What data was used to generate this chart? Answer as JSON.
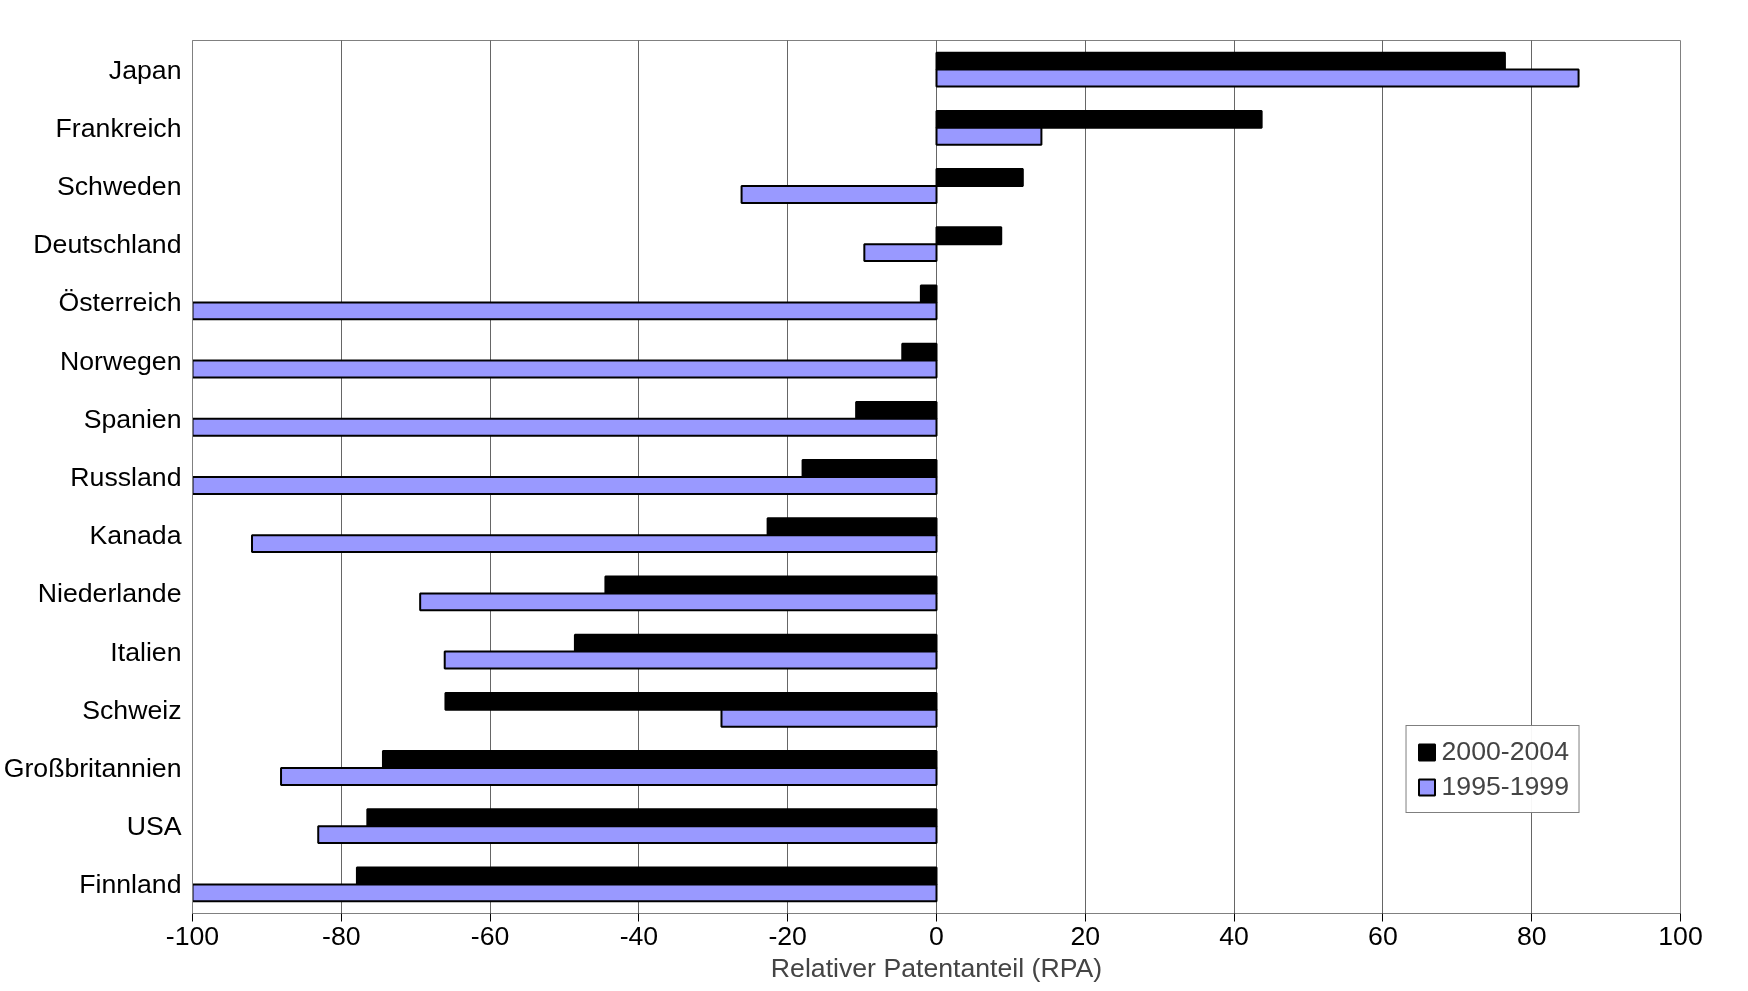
{
  "chart_data": {
    "type": "bar",
    "orientation": "horizontal",
    "xlabel": "Relativer Patentanteil (RPA)",
    "categories": [
      "Japan",
      "Frankreich",
      "Schweden",
      "Deutschland",
      "Österreich",
      "Norwegen",
      "Spanien",
      "Russland",
      "Kanada",
      "Niederlande",
      "Italien",
      "Schweiz",
      "Großbritannien",
      "USA",
      "Finnland"
    ],
    "series": [
      {
        "name": "2000-2004",
        "color": "#000000",
        "values": [
          76.4,
          43.7,
          11.6,
          8.7,
          -2.1,
          -4.6,
          -10.8,
          -18,
          -22.7,
          -44.5,
          -48.6,
          -66,
          -74.4,
          -76.5,
          -77.9
        ]
      },
      {
        "name": "1995-1999",
        "color": "#9999ff",
        "values": [
          86.3,
          14.1,
          -26.2,
          -9.7,
          -100,
          -100,
          -100,
          -100,
          -92,
          -69.4,
          -66.1,
          -28.9,
          -88.1,
          -83.1,
          -100
        ]
      }
    ],
    "xlim": [
      -100,
      100
    ],
    "xticks": [
      -100,
      -80,
      -60,
      -40,
      -20,
      0,
      20,
      40,
      60,
      80,
      100
    ],
    "grid": "x",
    "legend": "bottom right"
  }
}
